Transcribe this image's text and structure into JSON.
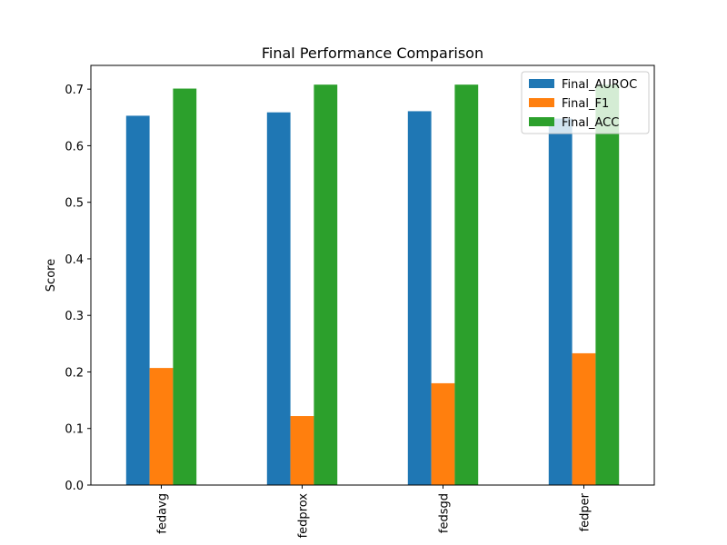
{
  "chart_data": {
    "type": "bar",
    "title": "Final Performance Comparison",
    "xlabel": "",
    "ylabel": "Score",
    "categories": [
      "fedavg",
      "fedprox",
      "fedsgd",
      "fedper"
    ],
    "series": [
      {
        "name": "Final_AUROC",
        "color": "#1f77b4",
        "values": [
          0.653,
          0.659,
          0.661,
          0.648
        ]
      },
      {
        "name": "Final_F1",
        "color": "#ff7f0e",
        "values": [
          0.207,
          0.122,
          0.18,
          0.233
        ]
      },
      {
        "name": "Final_ACC",
        "color": "#2ca02c",
        "values": [
          0.701,
          0.708,
          0.708,
          0.708
        ]
      }
    ],
    "ylim": [
      0,
      0.742
    ],
    "yticks": [
      "0.0",
      "0.1",
      "0.2",
      "0.3",
      "0.4",
      "0.5",
      "0.6",
      "0.7"
    ],
    "grid": false,
    "legend_position": "top-right"
  }
}
